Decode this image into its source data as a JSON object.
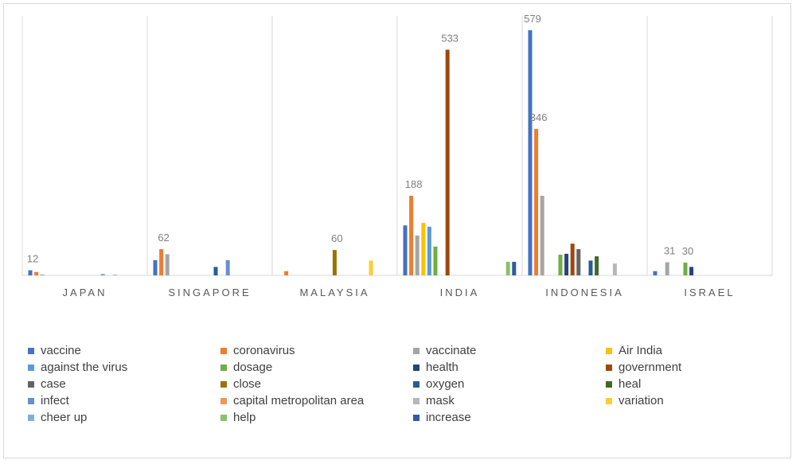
{
  "chart_data": {
    "type": "bar",
    "title": "",
    "xlabel": "",
    "ylabel": "",
    "ylim": [
      0,
      610
    ],
    "grid": false,
    "legend_position": "bottom",
    "categories": [
      "JAPAN",
      "SINGAPORE",
      "MALAYSIA",
      "INDIA",
      "INDONESIA",
      "ISRAEL"
    ],
    "series": [
      {
        "name": "vaccine",
        "color": "#4472C4",
        "values": [
          12,
          36,
          0,
          118,
          579,
          10
        ]
      },
      {
        "name": "coronavirus",
        "color": "#ED7D31",
        "values": [
          8,
          62,
          10,
          188,
          346,
          0
        ]
      },
      {
        "name": "vaccinate",
        "color": "#A5A5A5",
        "values": [
          2,
          50,
          0,
          94,
          188,
          31
        ]
      },
      {
        "name": "Air India",
        "color": "#FFC000",
        "values": [
          0,
          0,
          0,
          124,
          0,
          0
        ]
      },
      {
        "name": "against the virus",
        "color": "#5B9BD5",
        "values": [
          0,
          0,
          0,
          115,
          0,
          0
        ]
      },
      {
        "name": "dosage",
        "color": "#70AD47",
        "values": [
          0,
          0,
          0,
          68,
          49,
          30
        ]
      },
      {
        "name": "health",
        "color": "#264478",
        "values": [
          0,
          0,
          0,
          0,
          51,
          20
        ]
      },
      {
        "name": "government",
        "color": "#9E480E",
        "values": [
          0,
          0,
          0,
          533,
          75,
          0
        ]
      },
      {
        "name": "case",
        "color": "#636363",
        "values": [
          0,
          0,
          0,
          0,
          62,
          0
        ]
      },
      {
        "name": "close",
        "color": "#997300",
        "values": [
          0,
          0,
          60,
          0,
          0,
          0
        ]
      },
      {
        "name": "oxygen",
        "color": "#255E91",
        "values": [
          0,
          20,
          0,
          0,
          35,
          0
        ]
      },
      {
        "name": "heal",
        "color": "#43682B",
        "values": [
          0,
          0,
          0,
          0,
          45,
          0
        ]
      },
      {
        "name": "infect",
        "color": "#698ED0",
        "values": [
          3,
          36,
          0,
          0,
          0,
          0
        ]
      },
      {
        "name": "capital metropolitan area",
        "color": "#F1975A",
        "values": [
          0,
          0,
          0,
          0,
          0,
          0
        ]
      },
      {
        "name": "mask",
        "color": "#B7B7B7",
        "values": [
          2,
          0,
          0,
          0,
          28,
          0
        ]
      },
      {
        "name": "variation",
        "color": "#FFCD33",
        "values": [
          0,
          0,
          35,
          0,
          0,
          0
        ]
      },
      {
        "name": "cheer up",
        "color": "#7CAFDD",
        "values": [
          0,
          0,
          0,
          0,
          0,
          0
        ]
      },
      {
        "name": "help",
        "color": "#8CC168",
        "values": [
          0,
          0,
          0,
          32,
          0,
          0
        ]
      },
      {
        "name": "increase",
        "color": "#335AA1",
        "values": [
          0,
          0,
          0,
          32,
          0,
          0
        ]
      }
    ],
    "data_labels": [
      {
        "category": "JAPAN",
        "series": "vaccine",
        "text": "12"
      },
      {
        "category": "SINGAPORE",
        "series": "coronavirus",
        "text": "62"
      },
      {
        "category": "MALAYSIA",
        "series": "close",
        "text": "60"
      },
      {
        "category": "INDIA",
        "series": "coronavirus",
        "text": "188"
      },
      {
        "category": "INDIA",
        "series": "government",
        "text": "533"
      },
      {
        "category": "INDONESIA",
        "series": "vaccine",
        "text": "579"
      },
      {
        "category": "INDONESIA",
        "series": "coronavirus",
        "text": "346"
      },
      {
        "category": "ISRAEL",
        "series": "vaccinate",
        "text": "31"
      },
      {
        "category": "ISRAEL",
        "series": "dosage",
        "text": "30"
      }
    ]
  }
}
